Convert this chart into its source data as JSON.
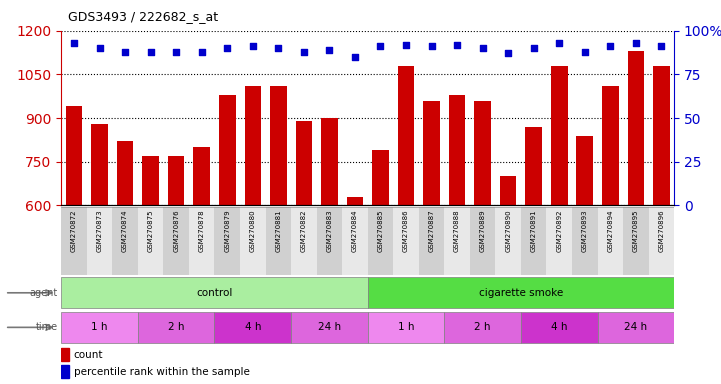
{
  "title": "GDS3493 / 222682_s_at",
  "samples": [
    "GSM270872",
    "GSM270873",
    "GSM270874",
    "GSM270875",
    "GSM270876",
    "GSM270878",
    "GSM270879",
    "GSM270880",
    "GSM270881",
    "GSM270882",
    "GSM270883",
    "GSM270884",
    "GSM270885",
    "GSM270886",
    "GSM270887",
    "GSM270888",
    "GSM270889",
    "GSM270890",
    "GSM270891",
    "GSM270892",
    "GSM270893",
    "GSM270894",
    "GSM270895",
    "GSM270896"
  ],
  "counts": [
    940,
    880,
    820,
    770,
    770,
    800,
    980,
    1010,
    1010,
    890,
    900,
    630,
    790,
    1080,
    960,
    980,
    960,
    700,
    870,
    1080,
    840,
    1010,
    1130,
    1080
  ],
  "percentiles": [
    93,
    90,
    88,
    88,
    88,
    88,
    90,
    91,
    90,
    88,
    89,
    85,
    91,
    92,
    91,
    92,
    90,
    87,
    90,
    93,
    88,
    91,
    93,
    91
  ],
  "ylim_left": [
    600,
    1200
  ],
  "ylim_right": [
    0,
    100
  ],
  "yticks_left": [
    600,
    750,
    900,
    1050,
    1200
  ],
  "yticks_right": [
    0,
    25,
    50,
    75,
    100
  ],
  "bar_color": "#cc0000",
  "dot_color": "#0000cc",
  "agent_groups": [
    {
      "label": "control",
      "start": 0,
      "end": 12,
      "color": "#aaeea0"
    },
    {
      "label": "cigarette smoke",
      "start": 12,
      "end": 24,
      "color": "#55dd44"
    }
  ],
  "time_groups": [
    {
      "label": "1 h",
      "start": 0,
      "end": 3,
      "color": "#ee88ee"
    },
    {
      "label": "2 h",
      "start": 3,
      "end": 6,
      "color": "#dd66dd"
    },
    {
      "label": "4 h",
      "start": 6,
      "end": 9,
      "color": "#cc33cc"
    },
    {
      "label": "24 h",
      "start": 9,
      "end": 12,
      "color": "#dd66dd"
    },
    {
      "label": "1 h",
      "start": 12,
      "end": 15,
      "color": "#ee88ee"
    },
    {
      "label": "2 h",
      "start": 15,
      "end": 18,
      "color": "#dd66dd"
    },
    {
      "label": "4 h",
      "start": 18,
      "end": 21,
      "color": "#cc33cc"
    },
    {
      "label": "24 h",
      "start": 21,
      "end": 24,
      "color": "#dd66dd"
    }
  ],
  "background_color": "#ffffff",
  "label_bg_even": "#d0d0d0",
  "label_bg_odd": "#e8e8e8"
}
